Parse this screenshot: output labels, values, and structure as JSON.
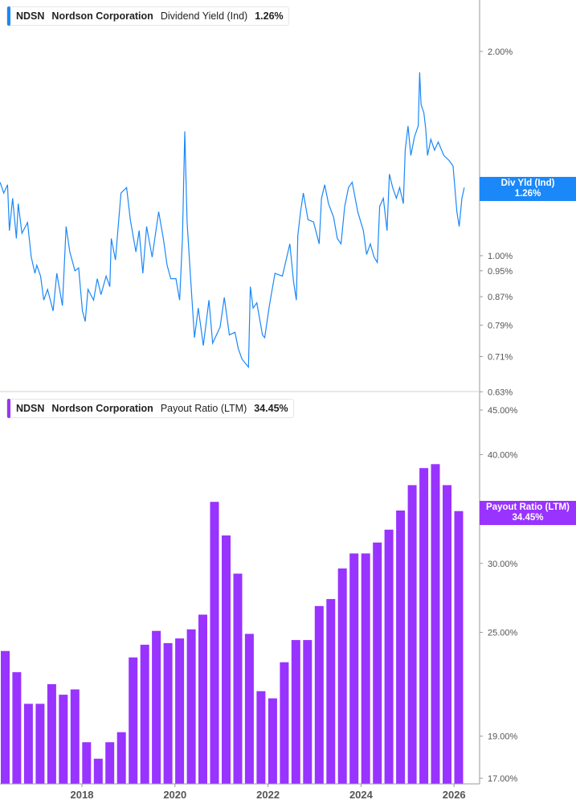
{
  "colors": {
    "yield_line": "#1a88f8",
    "payout_bars": "#9933ff",
    "axis": "#9a9a9a"
  },
  "top_legend": {
    "ticker": "NDSN",
    "company": "Nordson Corporation",
    "metric": "Dividend Yield (Ind)",
    "value": "1.26%"
  },
  "bottom_legend": {
    "ticker": "NDSN",
    "company": "Nordson Corporation",
    "metric": "Payout Ratio (LTM)",
    "value": "34.45%"
  },
  "top_tag": {
    "label": "Div Yld (Ind)",
    "value": "1.26%"
  },
  "bottom_tag": {
    "label": "Payout Ratio (LTM)",
    "value": "34.45%"
  },
  "chart_data": [
    {
      "type": "line",
      "scale": "log",
      "ylabel": "",
      "grid": false,
      "legend": "top-left",
      "yticks": [
        "2.00%",
        "1.00%",
        "0.95%",
        "0.87%",
        "0.79%",
        "0.71%",
        "0.63%"
      ],
      "ytick_values": [
        2.0,
        1.0,
        0.95,
        0.87,
        0.79,
        0.71,
        0.63
      ],
      "ylim": [
        0.63,
        2.38
      ],
      "series": [
        {
          "name": "Dividend Yield (Ind)",
          "points": [
            [
              2016.24,
              1.283
            ],
            [
              2016.32,
              1.237
            ],
            [
              2016.4,
              1.272
            ],
            [
              2016.44,
              1.089
            ],
            [
              2016.51,
              1.215
            ],
            [
              2016.59,
              1.06
            ],
            [
              2016.63,
              1.193
            ],
            [
              2016.71,
              1.079
            ],
            [
              2016.83,
              1.119
            ],
            [
              2016.91,
              0.995
            ],
            [
              2016.99,
              0.942
            ],
            [
              2017.03,
              0.968
            ],
            [
              2017.11,
              0.933
            ],
            [
              2017.18,
              0.86
            ],
            [
              2017.26,
              0.892
            ],
            [
              2017.38,
              0.829
            ],
            [
              2017.46,
              0.942
            ],
            [
              2017.58,
              0.844
            ],
            [
              2017.66,
              1.104
            ],
            [
              2017.74,
              1.013
            ],
            [
              2017.85,
              0.95
            ],
            [
              2017.93,
              0.959
            ],
            [
              2018.01,
              0.829
            ],
            [
              2018.07,
              0.8
            ],
            [
              2018.13,
              0.892
            ],
            [
              2018.25,
              0.86
            ],
            [
              2018.33,
              0.925
            ],
            [
              2018.41,
              0.876
            ],
            [
              2018.52,
              0.933
            ],
            [
              2018.6,
              0.9
            ],
            [
              2018.63,
              1.06
            ],
            [
              2018.72,
              0.986
            ],
            [
              2018.84,
              1.237
            ],
            [
              2018.96,
              1.26
            ],
            [
              2019.04,
              1.13
            ],
            [
              2019.16,
              1.013
            ],
            [
              2019.23,
              1.089
            ],
            [
              2019.31,
              0.942
            ],
            [
              2019.39,
              1.104
            ],
            [
              2019.51,
              0.995
            ],
            [
              2019.65,
              1.161
            ],
            [
              2019.75,
              1.06
            ],
            [
              2019.83,
              0.968
            ],
            [
              2019.91,
              0.925
            ],
            [
              2020.02,
              0.925
            ],
            [
              2020.1,
              0.86
            ],
            [
              2020.16,
              1.06
            ],
            [
              2020.21,
              1.525
            ],
            [
              2020.26,
              1.121
            ],
            [
              2020.34,
              0.916
            ],
            [
              2020.42,
              0.757
            ],
            [
              2020.5,
              0.837
            ],
            [
              2020.61,
              0.737
            ],
            [
              2020.73,
              0.86
            ],
            [
              2020.81,
              0.743
            ],
            [
              2020.97,
              0.785
            ],
            [
              2021.06,
              0.868
            ],
            [
              2021.17,
              0.764
            ],
            [
              2021.29,
              0.771
            ],
            [
              2021.36,
              0.73
            ],
            [
              2021.44,
              0.704
            ],
            [
              2021.58,
              0.685
            ],
            [
              2021.62,
              0.9
            ],
            [
              2021.68,
              0.837
            ],
            [
              2021.76,
              0.852
            ],
            [
              2021.88,
              0.764
            ],
            [
              2021.93,
              0.757
            ],
            [
              2022.03,
              0.844
            ],
            [
              2022.15,
              0.942
            ],
            [
              2022.31,
              0.933
            ],
            [
              2022.39,
              0.986
            ],
            [
              2022.47,
              1.041
            ],
            [
              2022.55,
              0.916
            ],
            [
              2022.61,
              0.86
            ],
            [
              2022.64,
              1.07
            ],
            [
              2022.7,
              1.161
            ],
            [
              2022.76,
              1.237
            ],
            [
              2022.86,
              1.13
            ],
            [
              2022.98,
              1.121
            ],
            [
              2023.1,
              1.041
            ],
            [
              2023.15,
              1.215
            ],
            [
              2023.22,
              1.272
            ],
            [
              2023.3,
              1.193
            ],
            [
              2023.41,
              1.14
            ],
            [
              2023.49,
              1.06
            ],
            [
              2023.57,
              1.041
            ],
            [
              2023.65,
              1.182
            ],
            [
              2023.73,
              1.26
            ],
            [
              2023.81,
              1.283
            ],
            [
              2023.93,
              1.161
            ],
            [
              2024.05,
              1.089
            ],
            [
              2024.12,
              1.004
            ],
            [
              2024.2,
              1.041
            ],
            [
              2024.28,
              0.995
            ],
            [
              2024.35,
              0.977
            ],
            [
              2024.4,
              1.182
            ],
            [
              2024.48,
              1.215
            ],
            [
              2024.56,
              1.089
            ],
            [
              2024.61,
              1.319
            ],
            [
              2024.68,
              1.26
            ],
            [
              2024.76,
              1.215
            ],
            [
              2024.83,
              1.26
            ],
            [
              2024.91,
              1.193
            ],
            [
              2024.95,
              1.431
            ],
            [
              2025.01,
              1.553
            ],
            [
              2025.07,
              1.405
            ],
            [
              2025.15,
              1.498
            ],
            [
              2025.23,
              1.553
            ],
            [
              2025.26,
              1.863
            ],
            [
              2025.29,
              1.67
            ],
            [
              2025.35,
              1.625
            ],
            [
              2025.39,
              1.539
            ],
            [
              2025.43,
              1.405
            ],
            [
              2025.5,
              1.484
            ],
            [
              2025.58,
              1.431
            ],
            [
              2025.66,
              1.471
            ],
            [
              2025.78,
              1.405
            ],
            [
              2025.9,
              1.38
            ],
            [
              2025.98,
              1.355
            ],
            [
              2026.06,
              1.161
            ],
            [
              2026.11,
              1.104
            ],
            [
              2026.17,
              1.215
            ],
            [
              2026.22,
              1.26
            ]
          ]
        }
      ]
    },
    {
      "type": "bar",
      "scale": "log",
      "ylabel": "",
      "grid": false,
      "legend": "top-left",
      "xticks": [
        "2018",
        "2020",
        "2022",
        "2024",
        "2026"
      ],
      "xtick_values": [
        2018,
        2020,
        2022,
        2024,
        2026
      ],
      "yticks": [
        "45.00%",
        "40.00%",
        "30.00%",
        "25.00%",
        "19.00%",
        "17.00%"
      ],
      "ytick_values": [
        45,
        40,
        30,
        25,
        19,
        17
      ],
      "ylim": [
        17,
        46.95
      ],
      "series": [
        {
          "name": "Payout Ratio (LTM)",
          "x": [
            2016.35,
            2016.6,
            2016.85,
            2017.1,
            2017.35,
            2017.6,
            2017.85,
            2018.1,
            2018.35,
            2018.6,
            2018.85,
            2019.1,
            2019.35,
            2019.6,
            2019.85,
            2020.1,
            2020.35,
            2020.6,
            2020.85,
            2021.1,
            2021.35,
            2021.6,
            2021.85,
            2022.1,
            2022.35,
            2022.6,
            2022.85,
            2023.1,
            2023.35,
            2023.6,
            2023.85,
            2024.1,
            2024.35,
            2024.6,
            2024.85,
            2025.1,
            2025.35,
            2025.6,
            2025.85,
            2026.1
          ],
          "values": [
            23.8,
            22.5,
            20.7,
            20.7,
            21.8,
            21.2,
            21.5,
            18.7,
            17.9,
            18.7,
            19.2,
            23.4,
            24.2,
            25.1,
            24.3,
            24.6,
            25.2,
            26.2,
            35.3,
            32.3,
            29.2,
            24.9,
            21.4,
            21.0,
            23.1,
            24.5,
            24.5,
            26.8,
            27.3,
            29.6,
            30.8,
            30.8,
            31.7,
            32.8,
            34.5,
            36.9,
            38.6,
            39.0,
            36.9,
            34.45
          ]
        }
      ]
    }
  ]
}
